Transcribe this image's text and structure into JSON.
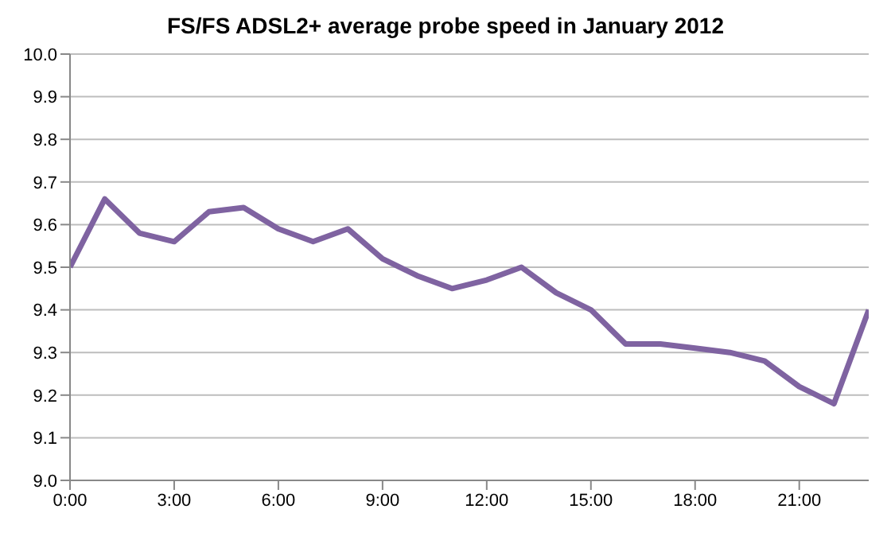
{
  "chart_data": {
    "type": "line",
    "title": "FS/FS ADSL2+ average probe speed in January 2012",
    "x": [
      0,
      1,
      2,
      3,
      4,
      5,
      6,
      7,
      8,
      9,
      10,
      11,
      12,
      13,
      14,
      15,
      16,
      17,
      18,
      19,
      20,
      21,
      22,
      23
    ],
    "series": [
      {
        "color": "#7f63a1",
        "values": [
          9.5,
          9.66,
          9.58,
          9.56,
          9.63,
          9.64,
          9.59,
          9.56,
          9.59,
          9.52,
          9.48,
          9.45,
          9.47,
          9.5,
          9.44,
          9.4,
          9.32,
          9.32,
          9.31,
          9.3,
          9.28,
          9.22,
          9.18,
          9.4
        ]
      }
    ],
    "xlim": [
      0,
      23
    ],
    "xticks": [
      {
        "value": 0,
        "label": "0:00"
      },
      {
        "value": 3,
        "label": "3:00"
      },
      {
        "value": 6,
        "label": "6:00"
      },
      {
        "value": 9,
        "label": "9:00"
      },
      {
        "value": 12,
        "label": "12:00"
      },
      {
        "value": 15,
        "label": "15:00"
      },
      {
        "value": 18,
        "label": "18:00"
      },
      {
        "value": 21,
        "label": "21:00"
      }
    ],
    "ylim": [
      9.0,
      10.0
    ],
    "yticks": [
      {
        "value": 9.0,
        "label": "9.0"
      },
      {
        "value": 9.1,
        "label": "9.1"
      },
      {
        "value": 9.2,
        "label": "9.2"
      },
      {
        "value": 9.3,
        "label": "9.3"
      },
      {
        "value": 9.4,
        "label": "9.4"
      },
      {
        "value": 9.5,
        "label": "9.5"
      },
      {
        "value": 9.6,
        "label": "9.6"
      },
      {
        "value": 9.7,
        "label": "9.7"
      },
      {
        "value": 9.8,
        "label": "9.8"
      },
      {
        "value": 9.9,
        "label": "9.9"
      },
      {
        "value": 10.0,
        "label": "10.0"
      }
    ],
    "grid": "y",
    "legend": false,
    "marker": "none",
    "line_style": "solid"
  }
}
